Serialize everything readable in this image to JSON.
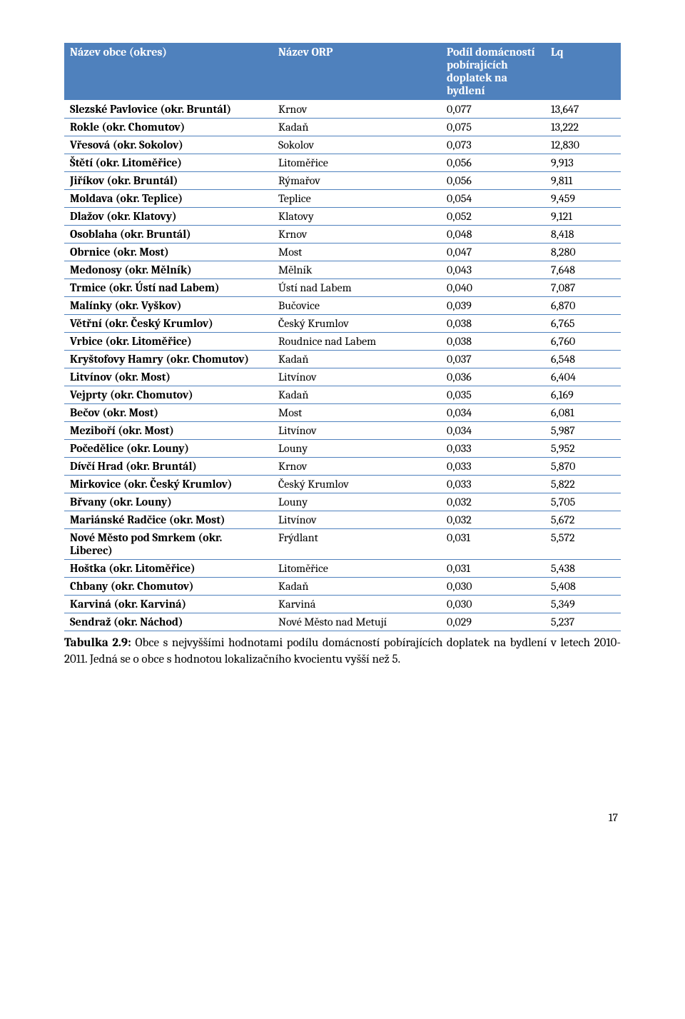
{
  "table": {
    "columns": [
      "Název obce (okres)",
      "Název ORP",
      "Podíl domácností pobírajících doplatek na bydlení",
      "Lq"
    ],
    "rows": [
      [
        "Slezské Pavlovice (okr. Bruntál)",
        "Krnov",
        "0,077",
        "13,647"
      ],
      [
        "Rokle (okr. Chomutov)",
        "Kadaň",
        "0,075",
        "13,222"
      ],
      [
        "Vřesová (okr. Sokolov)",
        "Sokolov",
        "0,073",
        "12,830"
      ],
      [
        "Štětí (okr. Litoměřice)",
        "Litoměřice",
        "0,056",
        "9,913"
      ],
      [
        "Jiříkov (okr. Bruntál)",
        "Rýmařov",
        "0,056",
        "9,811"
      ],
      [
        "Moldava (okr. Teplice)",
        "Teplice",
        "0,054",
        "9,459"
      ],
      [
        "Dlažov (okr. Klatovy)",
        "Klatovy",
        "0,052",
        "9,121"
      ],
      [
        "Osoblaha (okr. Bruntál)",
        "Krnov",
        "0,048",
        "8,418"
      ],
      [
        "Obrnice (okr. Most)",
        "Most",
        "0,047",
        "8,280"
      ],
      [
        "Medonosy (okr. Mělník)",
        "Mělník",
        "0,043",
        "7,648"
      ],
      [
        "Trmice (okr. Ústí nad Labem)",
        "Ústí nad Labem",
        "0,040",
        "7,087"
      ],
      [
        "Malínky (okr. Vyškov)",
        "Bučovice",
        "0,039",
        "6,870"
      ],
      [
        "Větřní (okr. Český Krumlov)",
        "Český Krumlov",
        "0,038",
        "6,765"
      ],
      [
        "Vrbice (okr. Litoměřice)",
        "Roudnice nad Labem",
        "0,038",
        "6,760"
      ],
      [
        "Kryštofovy Hamry (okr. Chomutov)",
        "Kadaň",
        "0,037",
        "6,548"
      ],
      [
        "Litvínov (okr. Most)",
        "Litvínov",
        "0,036",
        "6,404"
      ],
      [
        "Vejprty (okr. Chomutov)",
        "Kadaň",
        "0,035",
        "6,169"
      ],
      [
        "Bečov (okr. Most)",
        "Most",
        "0,034",
        "6,081"
      ],
      [
        "Meziboří (okr. Most)",
        "Litvínov",
        "0,034",
        "5,987"
      ],
      [
        "Počedělice (okr. Louny)",
        "Louny",
        "0,033",
        "5,952"
      ],
      [
        "Dívčí Hrad (okr. Bruntál)",
        "Krnov",
        "0,033",
        "5,870"
      ],
      [
        "Mirkovice (okr. Český Krumlov)",
        "Český Krumlov",
        "0,033",
        "5,822"
      ],
      [
        "Břvany (okr. Louny)",
        "Louny",
        "0,032",
        "5,705"
      ],
      [
        "Mariánské Radčice (okr. Most)",
        "Litvínov",
        "0,032",
        "5,672"
      ],
      [
        "Nové Město pod Smrkem (okr. Liberec)",
        "Frýdlant",
        "0,031",
        "5,572"
      ],
      [
        "Hoštka (okr. Litoměřice)",
        "Litoměřice",
        "0,031",
        "5,438"
      ],
      [
        "Chbany (okr. Chomutov)",
        "Kadaň",
        "0,030",
        "5,408"
      ],
      [
        "Karviná (okr. Karviná)",
        "Karviná",
        "0,030",
        "5,349"
      ],
      [
        "Sendraž (okr. Náchod)",
        "Nové Město nad Metují",
        "0,029",
        "5,237"
      ]
    ]
  },
  "caption": {
    "label": "Tabulka 2.9:",
    "text": " Obce s nejvyššími hodnotami podílu domácností pobírajících doplatek na bydlení v letech 2010-2011. Jedná se o obce s hodnotou lokalizačního kvocientu vyšší než 5."
  },
  "page_number": "17"
}
